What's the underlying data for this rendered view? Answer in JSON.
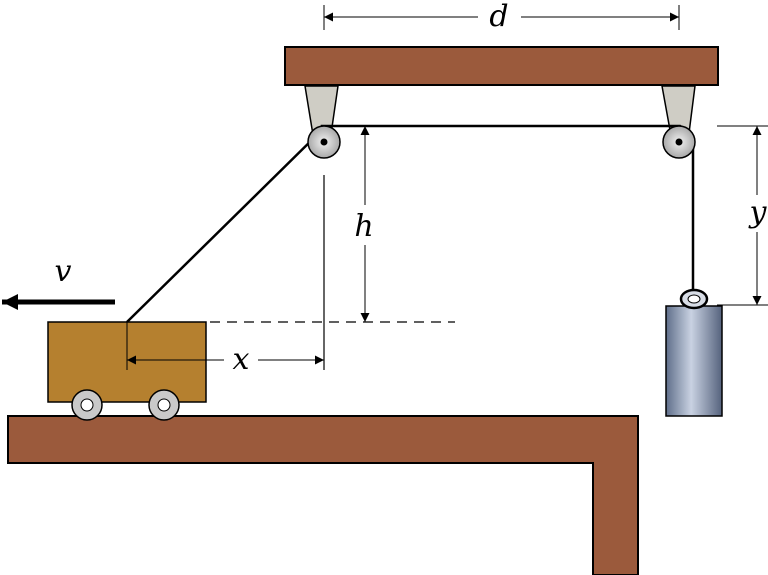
{
  "labels": {
    "d": "d",
    "h": "h",
    "y": "y",
    "x": "x",
    "v": "v"
  },
  "colors": {
    "wood": "#9b5a3c",
    "cart": "#b5802f",
    "weight": "#8b9ab4",
    "bracket": "#c9c7bf",
    "wheel": "#c9c9c9"
  }
}
